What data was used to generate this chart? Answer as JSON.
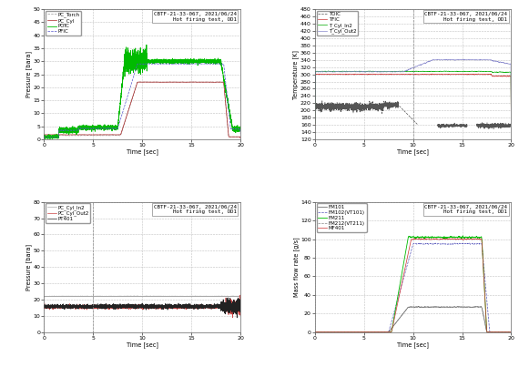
{
  "title_text": "CBTF-21-33-067, 2021/06/24\nHot firing test, OD1",
  "time_end": 20,
  "subplot1": {
    "ylabel": "Pressure [bara]",
    "xlabel": "Time [sec]",
    "ylim": [
      0,
      50
    ],
    "yticks": [
      0,
      5,
      10,
      15,
      20,
      25,
      30,
      35,
      40,
      45,
      50
    ],
    "xticks": [
      0,
      5,
      10,
      15,
      20
    ],
    "legend": [
      "PC_Torch",
      "PC_Cyl",
      "POIC",
      "PFIC"
    ],
    "colors": [
      "#999999",
      "#aa2222",
      "#00bb00",
      "#5555cc"
    ],
    "linestyles": [
      "--",
      "-",
      "-",
      "--"
    ]
  },
  "subplot2": {
    "ylabel": "Temperature [K]",
    "xlabel": "Time [sec]",
    "ylim": [
      120,
      480
    ],
    "yticks": [
      120,
      140,
      160,
      180,
      200,
      220,
      240,
      260,
      280,
      300,
      320,
      340,
      360,
      380,
      400,
      420,
      440,
      460,
      480
    ],
    "xticks": [
      0,
      5,
      10,
      15,
      20
    ],
    "legend": [
      "TOIC",
      "TFIC",
      "T_Cyl_In2",
      "T_Cyl_Out2"
    ],
    "colors": [
      "#555555",
      "#cc3333",
      "#00aa00",
      "#8888cc"
    ],
    "linestyles": [
      "--",
      "-",
      "-",
      "-"
    ]
  },
  "subplot3": {
    "ylabel": "Pressure [bara]",
    "xlabel": "Time [sec]",
    "ylim": [
      0,
      80
    ],
    "yticks": [
      0,
      10,
      20,
      30,
      40,
      50,
      60,
      70,
      80
    ],
    "xticks": [
      0,
      5,
      10,
      15,
      20
    ],
    "legend": [
      "PC_Cyl_In2",
      "PC_Cyl_Out2",
      "PT401"
    ],
    "colors": [
      "#aaaaaa",
      "#cc4444",
      "#222222"
    ],
    "linestyles": [
      "-",
      "-",
      "-"
    ]
  },
  "subplot4": {
    "ylabel": "Mass flow rate [g/s]",
    "xlabel": "Time [sec]",
    "ylim": [
      0,
      140
    ],
    "yticks": [
      0,
      20,
      40,
      60,
      80,
      100,
      120,
      140
    ],
    "xticks": [
      0,
      5,
      10,
      15,
      20
    ],
    "legend": [
      "FM101",
      "FM102(VT101)",
      "FM211",
      "FM212(VT211)",
      "MF401"
    ],
    "colors": [
      "#555555",
      "#5555bb",
      "#00bb00",
      "#888888",
      "#cc3333"
    ],
    "linestyles": [
      "-",
      "--",
      "-",
      "--",
      "-"
    ]
  }
}
